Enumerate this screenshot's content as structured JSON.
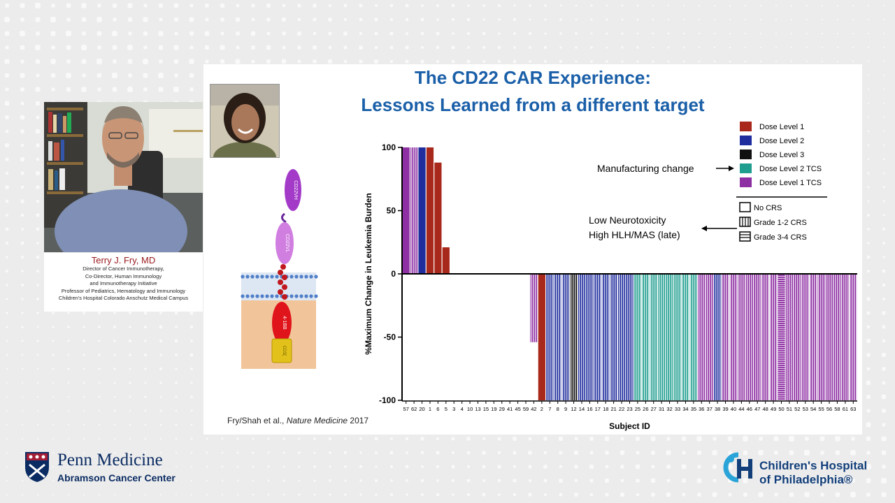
{
  "speaker": {
    "name": "Terry J. Fry, MD",
    "lines": [
      "Director of Cancer Immunotherapy,",
      "Co-Director, Human Immunology",
      "and Immunotherapy Initiative",
      "Professor of Pediatrics, Hematology and Immunology",
      "Children's Hospital Colorado Anschutz Medical Campus"
    ]
  },
  "slide": {
    "title_line1": "The CD22 CAR Experience:",
    "title_line2": "Lessons Learned from a different target",
    "citation_prefix": "Fry/Shah et al., ",
    "citation_journal": "Nature Medicine",
    "citation_year": " 2017",
    "car_labels": [
      "CD22VH",
      "CD22VL",
      "4-1BB",
      "CD3ζ"
    ],
    "annotations": {
      "manufacturing": "Manufacturing change",
      "neuro_line1": "Low Neurotoxicity",
      "neuro_line2": "High HLH/MAS (late)"
    }
  },
  "colors": {
    "dose1": "#a8291b",
    "dose2": "#1f2d9e",
    "dose3": "#111111",
    "dose2tcs": "#1f9e8f",
    "dose1tcs": "#8e2fa3",
    "title": "#1a5fa8"
  },
  "chart_data": {
    "type": "bar",
    "title": "",
    "xlabel": "Subject ID",
    "ylabel": "%Maximum Change in Leukemia Burden",
    "ylim": [
      -100,
      100
    ],
    "yticks": [
      100,
      50,
      0,
      -50,
      -100
    ],
    "categories": [
      "57",
      "62",
      "20",
      "1",
      "6",
      "5",
      "3",
      "4",
      "10",
      "13",
      "15",
      "19",
      "29",
      "41",
      "45",
      "59",
      "42",
      "2",
      "7",
      "8",
      "9",
      "12",
      "14",
      "16",
      "17",
      "18",
      "21",
      "22",
      "23",
      "25",
      "26",
      "27",
      "31",
      "32",
      "33",
      "34",
      "35",
      "36",
      "37",
      "38",
      "39",
      "40",
      "44",
      "46",
      "47",
      "48",
      "49",
      "50",
      "51",
      "52",
      "53",
      "54",
      "55",
      "56",
      "58",
      "61",
      "63"
    ],
    "values": [
      100,
      100,
      100,
      100,
      88,
      21,
      0,
      0,
      0,
      0,
      0,
      0,
      0,
      0,
      0,
      0,
      -54,
      -100,
      -100,
      -100,
      -100,
      -100,
      -100,
      -100,
      -100,
      -100,
      -100,
      -100,
      -100,
      -100,
      -100,
      -100,
      -100,
      -100,
      -100,
      -100,
      -100,
      -100,
      -100,
      -100,
      -100,
      -100,
      -100,
      -100,
      -100,
      -100,
      -100,
      -100,
      -100,
      -100,
      -100,
      -100,
      -100,
      -100,
      -100,
      -100,
      -100
    ],
    "dose_level": [
      "Dose Level 1 TCS",
      "Dose Level 1 TCS",
      "Dose Level 2",
      "Dose Level 1",
      "Dose Level 1",
      "Dose Level 1",
      "Dose Level 1",
      "Dose Level 1",
      "Dose Level 1",
      "Dose Level 1",
      "Dose Level 1",
      "Dose Level 1",
      "Dose Level 1",
      "Dose Level 1",
      "Dose Level 1",
      "Dose Level 1",
      "Dose Level 1 TCS",
      "Dose Level 1",
      "Dose Level 2",
      "Dose Level 2",
      "Dose Level 2",
      "Dose Level 3",
      "Dose Level 2",
      "Dose Level 2",
      "Dose Level 2",
      "Dose Level 2",
      "Dose Level 2",
      "Dose Level 2",
      "Dose Level 2",
      "Dose Level 2 TCS",
      "Dose Level 2 TCS",
      "Dose Level 2 TCS",
      "Dose Level 2 TCS",
      "Dose Level 2 TCS",
      "Dose Level 2 TCS",
      "Dose Level 2 TCS",
      "Dose Level 2 TCS",
      "Dose Level 1 TCS",
      "Dose Level 1 TCS",
      "Dose Level 2",
      "Dose Level 1 TCS",
      "Dose Level 1 TCS",
      "Dose Level 1 TCS",
      "Dose Level 1 TCS",
      "Dose Level 1 TCS",
      "Dose Level 1 TCS",
      "Dose Level 1 TCS",
      "Dose Level 1 TCS",
      "Dose Level 1 TCS",
      "Dose Level 1 TCS",
      "Dose Level 1 TCS",
      "Dose Level 1 TCS",
      "Dose Level 1 TCS",
      "Dose Level 1 TCS",
      "Dose Level 1 TCS",
      "Dose Level 1 TCS",
      "Dose Level 1 TCS"
    ],
    "crs_grade": [
      "No CRS",
      "Grade 1-2 CRS",
      "No CRS",
      "No CRS",
      "No CRS",
      "No CRS",
      "No CRS",
      "No CRS",
      "No CRS",
      "No CRS",
      "No CRS",
      "No CRS",
      "No CRS",
      "No CRS",
      "No CRS",
      "No CRS",
      "Grade 1-2 CRS",
      "No CRS",
      "Grade 1-2 CRS",
      "Grade 1-2 CRS",
      "Grade 1-2 CRS",
      "Grade 1-2 CRS",
      "Grade 1-2 CRS",
      "Grade 1-2 CRS",
      "Grade 1-2 CRS",
      "Grade 1-2 CRS",
      "Grade 1-2 CRS",
      "Grade 1-2 CRS",
      "Grade 1-2 CRS",
      "Grade 1-2 CRS",
      "Grade 1-2 CRS",
      "Grade 1-2 CRS",
      "Grade 1-2 CRS",
      "Grade 1-2 CRS",
      "Grade 1-2 CRS",
      "Grade 1-2 CRS",
      "Grade 1-2 CRS",
      "Grade 1-2 CRS",
      "Grade 1-2 CRS",
      "Grade 1-2 CRS",
      "Grade 1-2 CRS",
      "Grade 1-2 CRS",
      "Grade 1-2 CRS",
      "Grade 1-2 CRS",
      "Grade 1-2 CRS",
      "Grade 1-2 CRS",
      "Grade 1-2 CRS",
      "Grade 3-4 CRS",
      "Grade 1-2 CRS",
      "Grade 1-2 CRS",
      "Grade 1-2 CRS",
      "Grade 1-2 CRS",
      "Grade 1-2 CRS",
      "Grade 1-2 CRS",
      "Grade 1-2 CRS",
      "Grade 1-2 CRS",
      "Grade 1-2 CRS"
    ],
    "legend": {
      "dose": [
        "Dose Level 1",
        "Dose Level 2",
        "Dose Level 3",
        "Dose Level 2 TCS",
        "Dose Level 1 TCS"
      ],
      "crs": [
        "No CRS",
        "Grade 1-2 CRS",
        "Grade 3-4 CRS"
      ]
    },
    "legend_position": "top-right",
    "grid": false
  },
  "logos": {
    "penn_line1": "Penn Medicine",
    "penn_line2": "Abramson Cancer Center",
    "chop_line1": "Children's Hospital",
    "chop_line2": "of Philadelphia®"
  }
}
